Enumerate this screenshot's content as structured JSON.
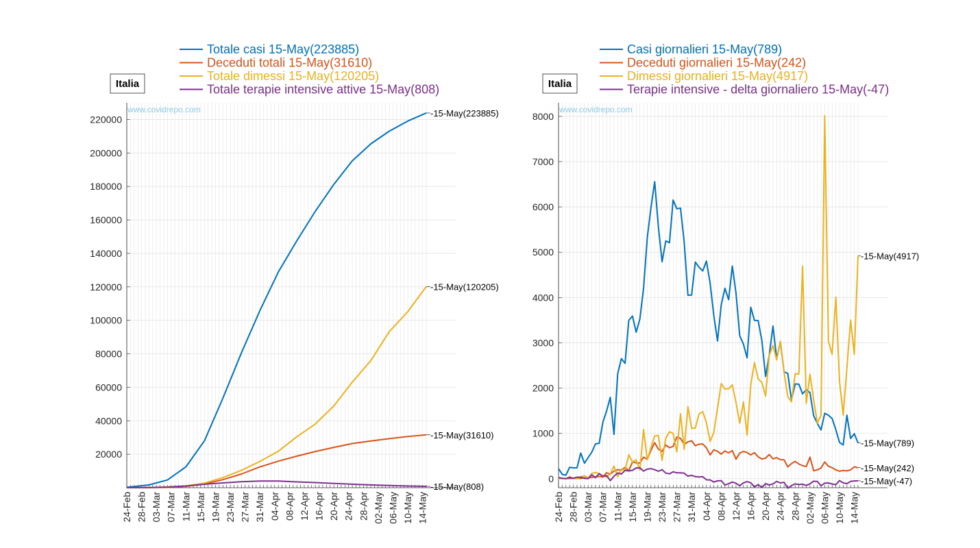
{
  "chart_data": [
    {
      "type": "line",
      "title": "Italia",
      "watermark": "www.covidrepo.com",
      "x_tick_labels": [
        "24-Feb",
        "28-Feb",
        "03-Mar",
        "07-Mar",
        "11-Mar",
        "15-Mar",
        "19-Mar",
        "23-Mar",
        "27-Mar",
        "31-Mar",
        "04-Apr",
        "08-Apr",
        "12-Apr",
        "16-Apr",
        "20-Apr",
        "24-Apr",
        "28-Apr",
        "02-May",
        "06-May",
        "10-May",
        "14-May"
      ],
      "x_start": "2020-02-24",
      "x_end": "2020-05-15",
      "ylim": [
        0,
        230000
      ],
      "y_ticks": [
        20000,
        40000,
        60000,
        80000,
        100000,
        120000,
        140000,
        160000,
        180000,
        200000,
        220000
      ],
      "grid": true,
      "legend_position": "top",
      "series": [
        {
          "name": "Totale casi 15-May(223885)",
          "end_label": "15-May(223885)",
          "color": "#0072BD",
          "x": [
            "2020-02-24",
            "2020-03-01",
            "2020-03-06",
            "2020-03-11",
            "2020-03-16",
            "2020-03-21",
            "2020-03-26",
            "2020-03-31",
            "2020-04-05",
            "2020-04-10",
            "2020-04-15",
            "2020-04-20",
            "2020-04-25",
            "2020-04-30",
            "2020-05-05",
            "2020-05-10",
            "2020-05-15"
          ],
          "values": [
            229,
            1694,
            4636,
            12462,
            27980,
            53578,
            80539,
            105792,
            128948,
            147577,
            165155,
            181228,
            195351,
            205463,
            213013,
            219070,
            223885
          ]
        },
        {
          "name": "Deceduti totali 15-May(31610)",
          "end_label": "15-May(31610)",
          "color": "#D95319",
          "x": [
            "2020-02-24",
            "2020-03-01",
            "2020-03-06",
            "2020-03-11",
            "2020-03-16",
            "2020-03-21",
            "2020-03-26",
            "2020-03-31",
            "2020-04-05",
            "2020-04-10",
            "2020-04-15",
            "2020-04-20",
            "2020-04-25",
            "2020-04-30",
            "2020-05-05",
            "2020-05-10",
            "2020-05-15"
          ],
          "values": [
            7,
            34,
            197,
            827,
            2158,
            4825,
            8165,
            12428,
            15887,
            18849,
            21645,
            24114,
            26384,
            27967,
            29315,
            30560,
            31610
          ]
        },
        {
          "name": "Totale dimessi 15-May(120205)",
          "end_label": "15-May(120205)",
          "color": "#EDB120",
          "x": [
            "2020-02-24",
            "2020-03-01",
            "2020-03-06",
            "2020-03-11",
            "2020-03-16",
            "2020-03-21",
            "2020-03-26",
            "2020-03-31",
            "2020-04-05",
            "2020-04-10",
            "2020-04-15",
            "2020-04-20",
            "2020-04-25",
            "2020-04-30",
            "2020-05-05",
            "2020-05-10",
            "2020-05-15"
          ],
          "values": [
            1,
            83,
            523,
            1045,
            2749,
            6072,
            10361,
            15729,
            21815,
            30455,
            38092,
            48877,
            63120,
            75945,
            93245,
            105186,
            120205
          ]
        },
        {
          "name": "Totale terapie intensive attive 15-May(808)",
          "end_label": "15-May(808)",
          "color": "#7E2F8E",
          "x": [
            "2020-02-24",
            "2020-03-01",
            "2020-03-06",
            "2020-03-11",
            "2020-03-16",
            "2020-03-21",
            "2020-03-26",
            "2020-03-31",
            "2020-04-05",
            "2020-04-10",
            "2020-04-15",
            "2020-04-20",
            "2020-04-25",
            "2020-04-30",
            "2020-05-05",
            "2020-05-10",
            "2020-05-15"
          ],
          "values": [
            26,
            140,
            351,
            1028,
            2060,
            2857,
            3612,
            4023,
            3977,
            3497,
            3079,
            2573,
            2102,
            1694,
            1333,
            1027,
            808
          ]
        }
      ]
    },
    {
      "type": "line",
      "title": "Italia",
      "watermark": "www.covidrepo.com",
      "x_tick_labels": [
        "24-Feb",
        "28-Feb",
        "03-Mar",
        "07-Mar",
        "11-Mar",
        "15-Mar",
        "19-Mar",
        "23-Mar",
        "27-Mar",
        "31-Mar",
        "04-Apr",
        "08-Apr",
        "12-Apr",
        "16-Apr",
        "20-Apr",
        "24-Apr",
        "28-Apr",
        "02-May",
        "06-May",
        "10-May",
        "14-May"
      ],
      "x_start": "2020-02-24",
      "x_end": "2020-05-15",
      "ylim": [
        -200,
        8300
      ],
      "y_ticks": [
        0,
        1000,
        2000,
        3000,
        4000,
        5000,
        6000,
        7000,
        8000
      ],
      "grid": true,
      "legend_position": "top",
      "series": [
        {
          "name": "Casi giornalieri 15-May(789)",
          "end_label": "15-May(789)",
          "color": "#0072BD",
          "values": [
            221,
            93,
            78,
            250,
            238,
            240,
            566,
            342,
            466,
            587,
            769,
            778,
            1247,
            1492,
            1797,
            977,
            2313,
            2651,
            2547,
            3497,
            3590,
            3233,
            3526,
            4207,
            5322,
            5986,
            6557,
            5560,
            4789,
            5249,
            5210,
            6153,
            5959,
            5974,
            5217,
            4050,
            4053,
            4782,
            4668,
            4585,
            4805,
            4316,
            3599,
            3039,
            3836,
            4204,
            3951,
            4694,
            4092,
            3153,
            2972,
            2667,
            3786,
            3493,
            3491,
            3047,
            2256,
            2729,
            3370,
            2646,
            3021,
            2357,
            2324,
            1739,
            2091,
            2086,
            1872,
            1965,
            1900,
            1389,
            1221,
            1075,
            1444,
            1401,
            1327,
            1083,
            802,
            744,
            1402,
            888,
            992,
            789
          ]
        },
        {
          "name": "Deceduti giornalieri 15-May(242)",
          "end_label": "15-May(242)",
          "color": "#D95319",
          "values": [
            4,
            4,
            1,
            5,
            4,
            8,
            5,
            18,
            27,
            28,
            41,
            49,
            36,
            133,
            97,
            168,
            196,
            189,
            250,
            175,
            368,
            349,
            345,
            475,
            427,
            627,
            793,
            651,
            601,
            743,
            683,
            712,
            919,
            889,
            756,
            812,
            837,
            727,
            760,
            766,
            681,
            525,
            636,
            604,
            542,
            610,
            570,
            619,
            431,
            566,
            602,
            578,
            525,
            575,
            482,
            433,
            454,
            534,
            437,
            464,
            420,
            415,
            260,
            333,
            382,
            323,
            285,
            269,
            474,
            174,
            195,
            236,
            369,
            274,
            243,
            194,
            165,
            179,
            172,
            195,
            262,
            242
          ]
        },
        {
          "name": "Dimessi giornalieri 15-May(4917)",
          "end_label": "15-May(4917)",
          "color": "#EDB120",
          "values": [
            1,
            2,
            0,
            43,
            0,
            0,
            37,
            66,
            11,
            116,
            138,
            109,
            66,
            33,
            102,
            280,
            41,
            213,
            181,
            527,
            369,
            414,
            192,
            1084,
            415,
            689,
            943,
            952,
            408,
            894,
            1036,
            999,
            589,
            1434,
            646,
            1590,
            1109,
            1118,
            1431,
            1480,
            1238,
            819,
            1022,
            1555,
            2099,
            1979,
            1985,
            2072,
            1677,
            1224,
            1695,
            962,
            2072,
            2563,
            2200,
            2128,
            1822,
            2723,
            2943,
            2622,
            3033,
            2352,
            1808,
            1696,
            2317,
            2311,
            4693,
            1665,
            2304,
            1740,
            1225,
            1401,
            8014,
            3031,
            2747,
            4008,
            2155,
            1401,
            2452,
            3502,
            2747,
            4917
          ]
        },
        {
          "name": "Terapie intensive - delta giornaliero 15-May(-47)",
          "end_label": "15-May(-47)",
          "color": "#7E2F8E",
          "values": [
            26,
            9,
            -1,
            29,
            8,
            33,
            35,
            5,
            0,
            84,
            22,
            111,
            50,
            71,
            -44,
            54,
            125,
            103,
            183,
            170,
            184,
            237,
            239,
            166,
            211,
            220,
            198,
            163,
            198,
            122,
            107,
            153,
            128,
            130,
            120,
            55,
            74,
            45,
            39,
            44,
            -26,
            -28,
            -75,
            -49,
            -42,
            -141,
            -113,
            -74,
            -103,
            -156,
            -93,
            -66,
            -91,
            -184,
            -131,
            -196,
            -109,
            -140,
            -116,
            -61,
            -94,
            -80,
            -210,
            -153,
            -115,
            -131,
            -122,
            -150,
            -114,
            -57,
            -63,
            -158,
            -98,
            -95,
            -117,
            -133,
            -42,
            -92,
            -111,
            -61,
            -50,
            -47
          ]
        }
      ]
    }
  ]
}
